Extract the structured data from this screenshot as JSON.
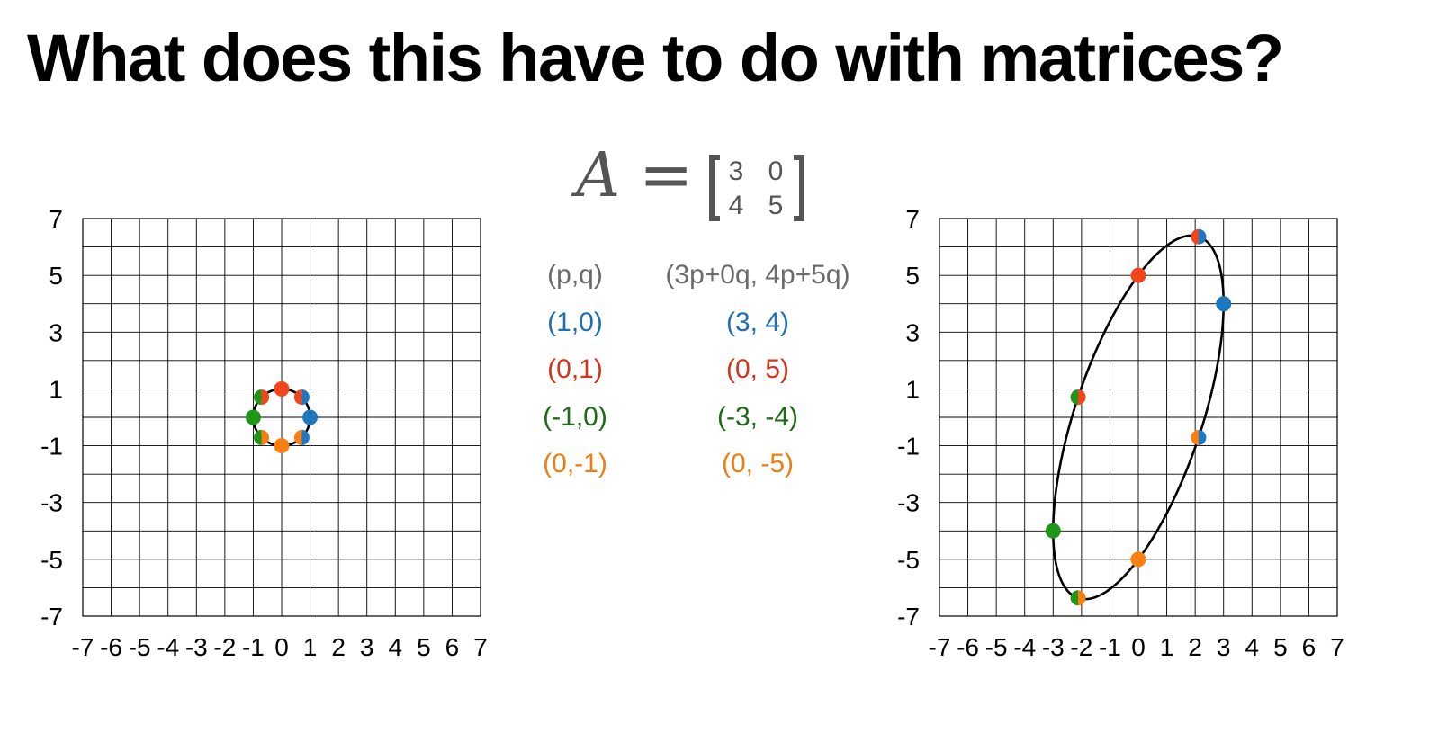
{
  "title": "What does this have to do with matrices?",
  "matrix": {
    "name": "A",
    "equals": "=",
    "rows": [
      [
        "3",
        "0"
      ],
      [
        "4",
        "5"
      ]
    ]
  },
  "mapping_table": {
    "header": {
      "input": "(p,q)",
      "output": "(3p+0q, 4p+5q)",
      "color": "#6b6b6b"
    },
    "rows": [
      {
        "input": "(1,0)",
        "output": "(3, 4)",
        "color": "#1f6fb4"
      },
      {
        "input": "(0,1)",
        "output": "(0, 5)",
        "color": "#d2341c"
      },
      {
        "input": "(-1,0)",
        "output": "(-3, -4)",
        "color": "#1e6a16"
      },
      {
        "input": "(0,-1)",
        "output": "(0, -5)",
        "color": "#ee7d14"
      }
    ]
  },
  "colors": {
    "blue": "#1f77c0",
    "red": "#f4441c",
    "green": "#1f951a",
    "orange": "#f97f12",
    "text_gray": "#555555"
  },
  "chart_data": [
    {
      "type": "scatter",
      "name": "unit-circle",
      "xlim": [
        -7,
        7
      ],
      "ylim": [
        -7,
        7
      ],
      "xticks": [
        "-7",
        "-6",
        "-5",
        "-4",
        "-3",
        "-2",
        "-1",
        "0",
        "1",
        "2",
        "3",
        "4",
        "5",
        "6",
        "7"
      ],
      "yticks": [
        "7",
        "5",
        "3",
        "1",
        "-1",
        "-3",
        "-5",
        "-7"
      ],
      "grid": true,
      "curve": {
        "kind": "circle",
        "a": [
          1,
          0
        ],
        "b": [
          0,
          1
        ]
      },
      "points": [
        {
          "x": 1,
          "y": 0,
          "colors": [
            "blue"
          ]
        },
        {
          "x": 0,
          "y": 1,
          "colors": [
            "red"
          ]
        },
        {
          "x": -1,
          "y": 0,
          "colors": [
            "green"
          ]
        },
        {
          "x": 0,
          "y": -1,
          "colors": [
            "orange"
          ]
        },
        {
          "x": 0.71,
          "y": 0.71,
          "colors": [
            "red",
            "blue"
          ]
        },
        {
          "x": -0.71,
          "y": 0.71,
          "colors": [
            "green",
            "red"
          ]
        },
        {
          "x": -0.71,
          "y": -0.71,
          "colors": [
            "green",
            "orange"
          ]
        },
        {
          "x": 0.71,
          "y": -0.71,
          "colors": [
            "orange",
            "blue"
          ]
        }
      ]
    },
    {
      "type": "scatter",
      "name": "transformed-ellipse",
      "xlim": [
        -7,
        7
      ],
      "ylim": [
        -7,
        7
      ],
      "xticks": [
        "-7",
        "-6",
        "-5",
        "-4",
        "-3",
        "-2",
        "-1",
        "0",
        "1",
        "2",
        "3",
        "4",
        "5",
        "6",
        "7"
      ],
      "yticks": [
        "7",
        "5",
        "3",
        "1",
        "-1",
        "-3",
        "-5",
        "-7"
      ],
      "grid": true,
      "curve": {
        "kind": "ellipse",
        "a": [
          3,
          4
        ],
        "b": [
          0,
          5
        ]
      },
      "points": [
        {
          "x": 3,
          "y": 4,
          "colors": [
            "blue"
          ]
        },
        {
          "x": 0,
          "y": 5,
          "colors": [
            "red"
          ]
        },
        {
          "x": -3,
          "y": -4,
          "colors": [
            "green"
          ]
        },
        {
          "x": 0,
          "y": -5,
          "colors": [
            "orange"
          ]
        },
        {
          "x": 2.12,
          "y": 6.36,
          "colors": [
            "red",
            "blue"
          ]
        },
        {
          "x": -2.12,
          "y": 0.71,
          "colors": [
            "green",
            "red"
          ]
        },
        {
          "x": -2.12,
          "y": -6.36,
          "colors": [
            "green",
            "orange"
          ]
        },
        {
          "x": 2.12,
          "y": -0.71,
          "colors": [
            "orange",
            "blue"
          ]
        }
      ]
    }
  ]
}
